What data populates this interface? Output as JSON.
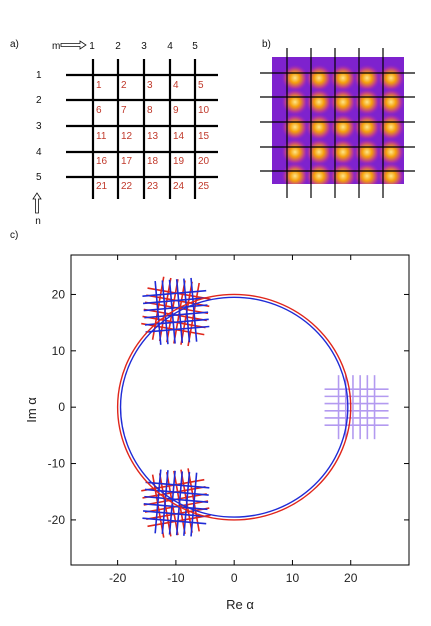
{
  "panels": {
    "a": {
      "label": "a)",
      "m_label": "m",
      "n_label": "n",
      "col_labels": [
        "1",
        "2",
        "3",
        "4",
        "5"
      ],
      "row_labels": [
        "1",
        "2",
        "3",
        "4",
        "5"
      ],
      "cell_numbers": [
        [
          "1",
          "2",
          "3",
          "4",
          "5"
        ],
        [
          "6",
          "7",
          "8",
          "9",
          "10"
        ],
        [
          "11",
          "12",
          "13",
          "14",
          "15"
        ],
        [
          "16",
          "17",
          "18",
          "19",
          "20"
        ],
        [
          "21",
          "22",
          "23",
          "24",
          "25"
        ]
      ],
      "colors": {
        "grid": "#000000",
        "numbers": "#c0392b"
      }
    },
    "b": {
      "label": "b)",
      "colors": {
        "background": "#7e22ce",
        "spot": "#f59e0b",
        "grid": "#000000"
      }
    },
    "c": {
      "label": "c)",
      "colors": {
        "red": "#e0261b",
        "blue": "#1f2bd6",
        "lilac": "#b39af0"
      }
    }
  },
  "chart_data": {
    "type": "line",
    "xlabel": "Re α",
    "ylabel": "Im α",
    "xlim": [
      -28,
      30
    ],
    "ylim": [
      -28,
      27
    ],
    "xticks": [
      -20,
      -10,
      0,
      10,
      20
    ],
    "yticks": [
      -20,
      -10,
      0,
      10,
      20
    ],
    "series": [
      {
        "curve": "circle",
        "center": [
          0,
          0
        ],
        "radius": 20,
        "color": "red"
      },
      {
        "curve": "circle",
        "center": [
          0,
          0
        ],
        "radius": 19.5,
        "color": "blue"
      }
    ],
    "grids": [
      {
        "center": [
          -10,
          17
        ],
        "angle_deg": 10,
        "color": "red"
      },
      {
        "center": [
          -10,
          17
        ],
        "angle_deg": -5,
        "color": "blue"
      },
      {
        "center": [
          -10,
          -17
        ],
        "angle_deg": -10,
        "color": "red"
      },
      {
        "center": [
          -10,
          -17
        ],
        "angle_deg": 5,
        "color": "blue"
      },
      {
        "center": [
          21,
          0
        ],
        "angle_deg": 0,
        "color": "lilac"
      }
    ]
  }
}
